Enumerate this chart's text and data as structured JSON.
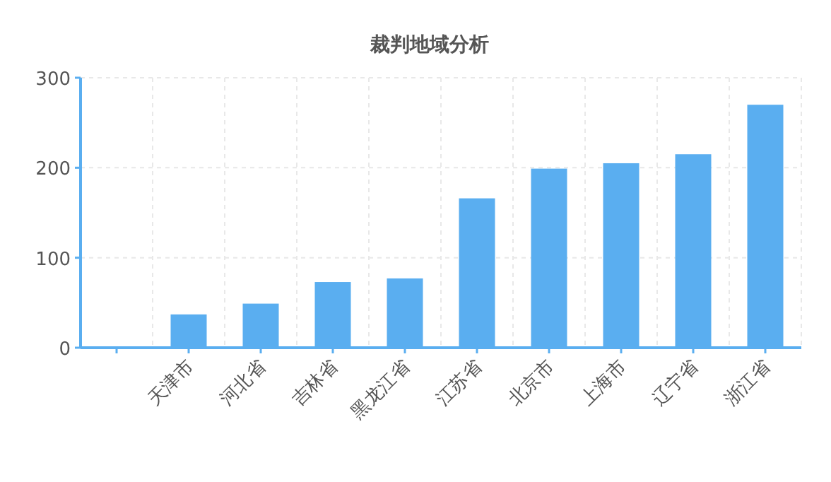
{
  "chart_data": {
    "type": "bar",
    "title": "裁判地域分析",
    "categories": [
      null,
      "天津市",
      "河北省",
      "吉林省",
      "黑龙江省",
      "江苏省",
      "北京市",
      "上海市",
      "辽宁省",
      "浙江省"
    ],
    "values": [
      null,
      37,
      49,
      73,
      77,
      166,
      199,
      205,
      215,
      270
    ],
    "color": "#5aaef0",
    "ylim": [
      0,
      300
    ],
    "yticks": [
      0,
      100,
      200,
      300
    ],
    "grid": true
  }
}
